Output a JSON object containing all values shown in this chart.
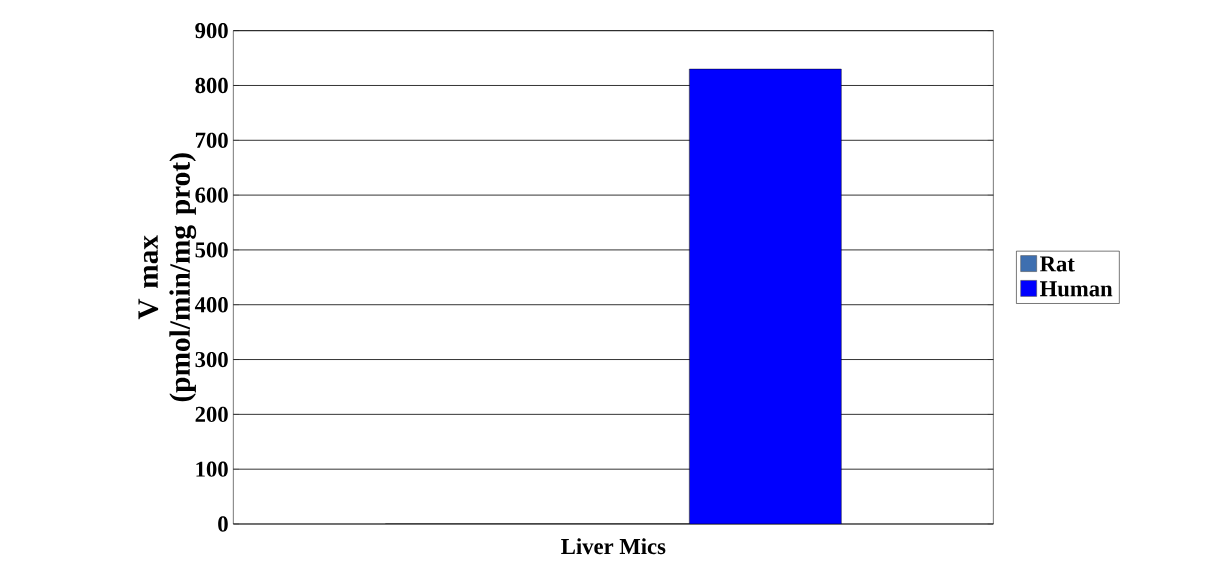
{
  "chart_data": {
    "type": "bar",
    "xlabel": "Liver Mics",
    "ylabel": "V max (pmol/min/mg prot)",
    "categories": [
      null
    ],
    "series": [
      {
        "name": "Rat",
        "color": "#3e6fb0",
        "values": [
          0
        ]
      },
      {
        "color": "#b0433d",
        "values": [
          0
        ]
      },
      {
        "name": "Human",
        "color": "#0000ff",
        "values": [
          830
        ]
      }
    ],
    "ylim": [
      0,
      900
    ],
    "yticks": [
      0,
      100,
      200,
      300,
      400,
      500,
      600,
      700,
      800,
      900
    ],
    "grid": "y",
    "legend": "right"
  }
}
